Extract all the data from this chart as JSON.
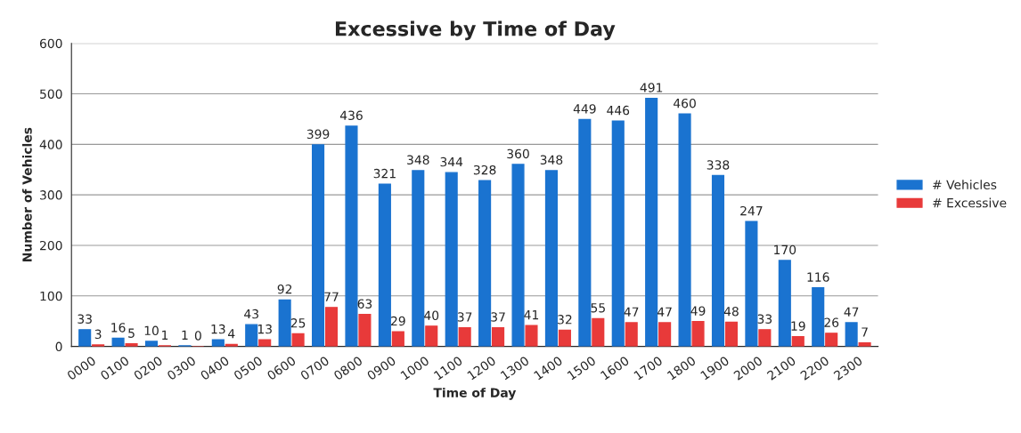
{
  "chart_data": {
    "type": "bar",
    "title": "Excessive by Time of Day",
    "xlabel": "Time of Day",
    "ylabel": "Number of Vehicles",
    "categories": [
      "0000",
      "0100",
      "0200",
      "0300",
      "0400",
      "0500",
      "0600",
      "0700",
      "0800",
      "0900",
      "1000",
      "1100",
      "1200",
      "1300",
      "1400",
      "1500",
      "1600",
      "1700",
      "1800",
      "1900",
      "2000",
      "2100",
      "2200",
      "2300"
    ],
    "series": [
      {
        "name": "# Vehicles",
        "color": "#1a73d0",
        "values": [
          33,
          16,
          10,
          1,
          13,
          43,
          92,
          399,
          436,
          321,
          348,
          344,
          328,
          360,
          348,
          449,
          446,
          491,
          460,
          338,
          247,
          170,
          116,
          47
        ]
      },
      {
        "name": "# Excessive",
        "color": "#e83a3a",
        "values": [
          3,
          5,
          1,
          0,
          4,
          13,
          25,
          77,
          63,
          29,
          40,
          37,
          37,
          41,
          32,
          55,
          47,
          47,
          49,
          48,
          33,
          19,
          26,
          7
        ]
      }
    ],
    "ylim": [
      0,
      600
    ],
    "yticks": [
      0,
      100,
      200,
      300,
      400,
      500,
      600
    ],
    "grid": "y",
    "legend": "right",
    "data_labels": true
  }
}
